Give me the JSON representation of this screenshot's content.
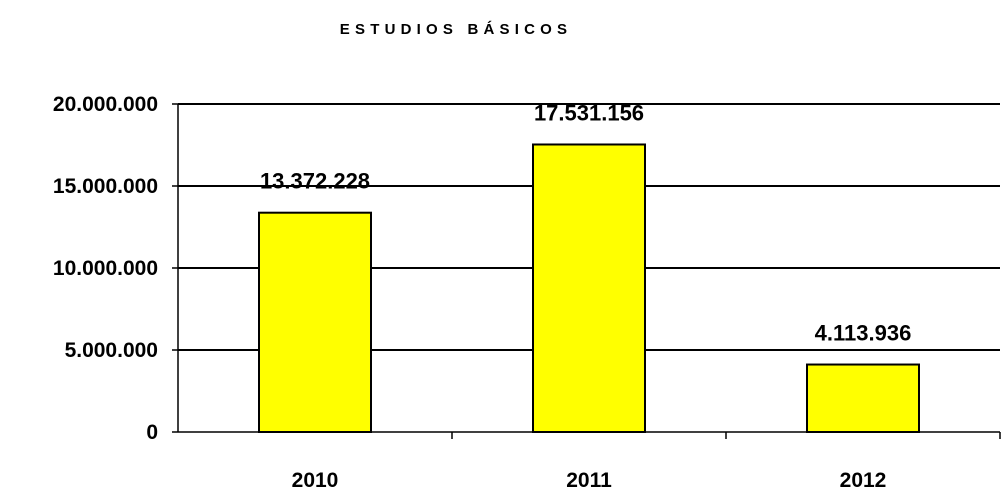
{
  "chart_data": {
    "type": "bar",
    "title": "ESTUDIOS BÁSICOS",
    "xlabel": "",
    "ylabel": "",
    "categories": [
      "2010",
      "2011",
      "2012"
    ],
    "values": [
      13372228,
      17531156,
      4113936
    ],
    "value_labels": [
      "13.372.228",
      "17.531.156",
      "4.113.936"
    ],
    "ylim": [
      0,
      20000000
    ],
    "yticks": [
      0,
      5000000,
      10000000,
      15000000,
      20000000
    ],
    "ytick_labels": [
      "0",
      "5.000.000",
      "10.000.000",
      "15.000.000",
      "20.000.000"
    ],
    "grid": true,
    "legend": "none",
    "colors": {
      "bar_fill": "#FFFF00",
      "bar_border": "#000000",
      "gridline": "#000000",
      "text": "#000000"
    }
  }
}
